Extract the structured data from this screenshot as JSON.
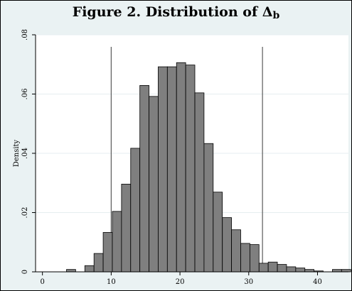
{
  "title": "Figure 2.  Distribution of Δ",
  "title_subscript": "b",
  "chart_data": {
    "type": "bar",
    "ylabel": "Density",
    "xlabel": "",
    "xlim": [
      -1,
      44.5
    ],
    "ylim": [
      0,
      0.08
    ],
    "xticks": [
      0,
      10,
      20,
      30,
      40
    ],
    "yticks": [
      0,
      0.02,
      0.04,
      0.06,
      0.08
    ],
    "xtick_labels": [
      "0",
      "10",
      "20",
      "30",
      "40"
    ],
    "ytick_labels": [
      "0",
      ".02",
      ".04",
      ".06",
      ".08"
    ],
    "bin_width": 1.33,
    "bin_left_edges": [
      3.5,
      6.167,
      7.5,
      8.833,
      10.167,
      11.5,
      12.833,
      14.167,
      15.5,
      16.833,
      18.167,
      19.5,
      20.833,
      22.167,
      23.5,
      24.833,
      26.167,
      27.5,
      28.833,
      30.167,
      31.5,
      32.833,
      34.167,
      35.5,
      36.833,
      38.167,
      39.5,
      42.167,
      43.5
    ],
    "densities": [
      0.0008,
      0.0021,
      0.0062,
      0.0133,
      0.0204,
      0.0296,
      0.0417,
      0.0629,
      0.0592,
      0.0692,
      0.0692,
      0.0706,
      0.0698,
      0.0604,
      0.0433,
      0.0269,
      0.0183,
      0.0142,
      0.0096,
      0.0092,
      0.0029,
      0.0033,
      0.0025,
      0.0017,
      0.0013,
      0.0008,
      0.0003,
      0.0008,
      0.0008
    ],
    "vertical_lines": [
      10,
      32
    ],
    "bar_color": "#7f7f7f",
    "bar_edge_color": "#000000",
    "plot_background": "#ffffff",
    "outer_background": "#eaf2f3",
    "grid": true
  }
}
